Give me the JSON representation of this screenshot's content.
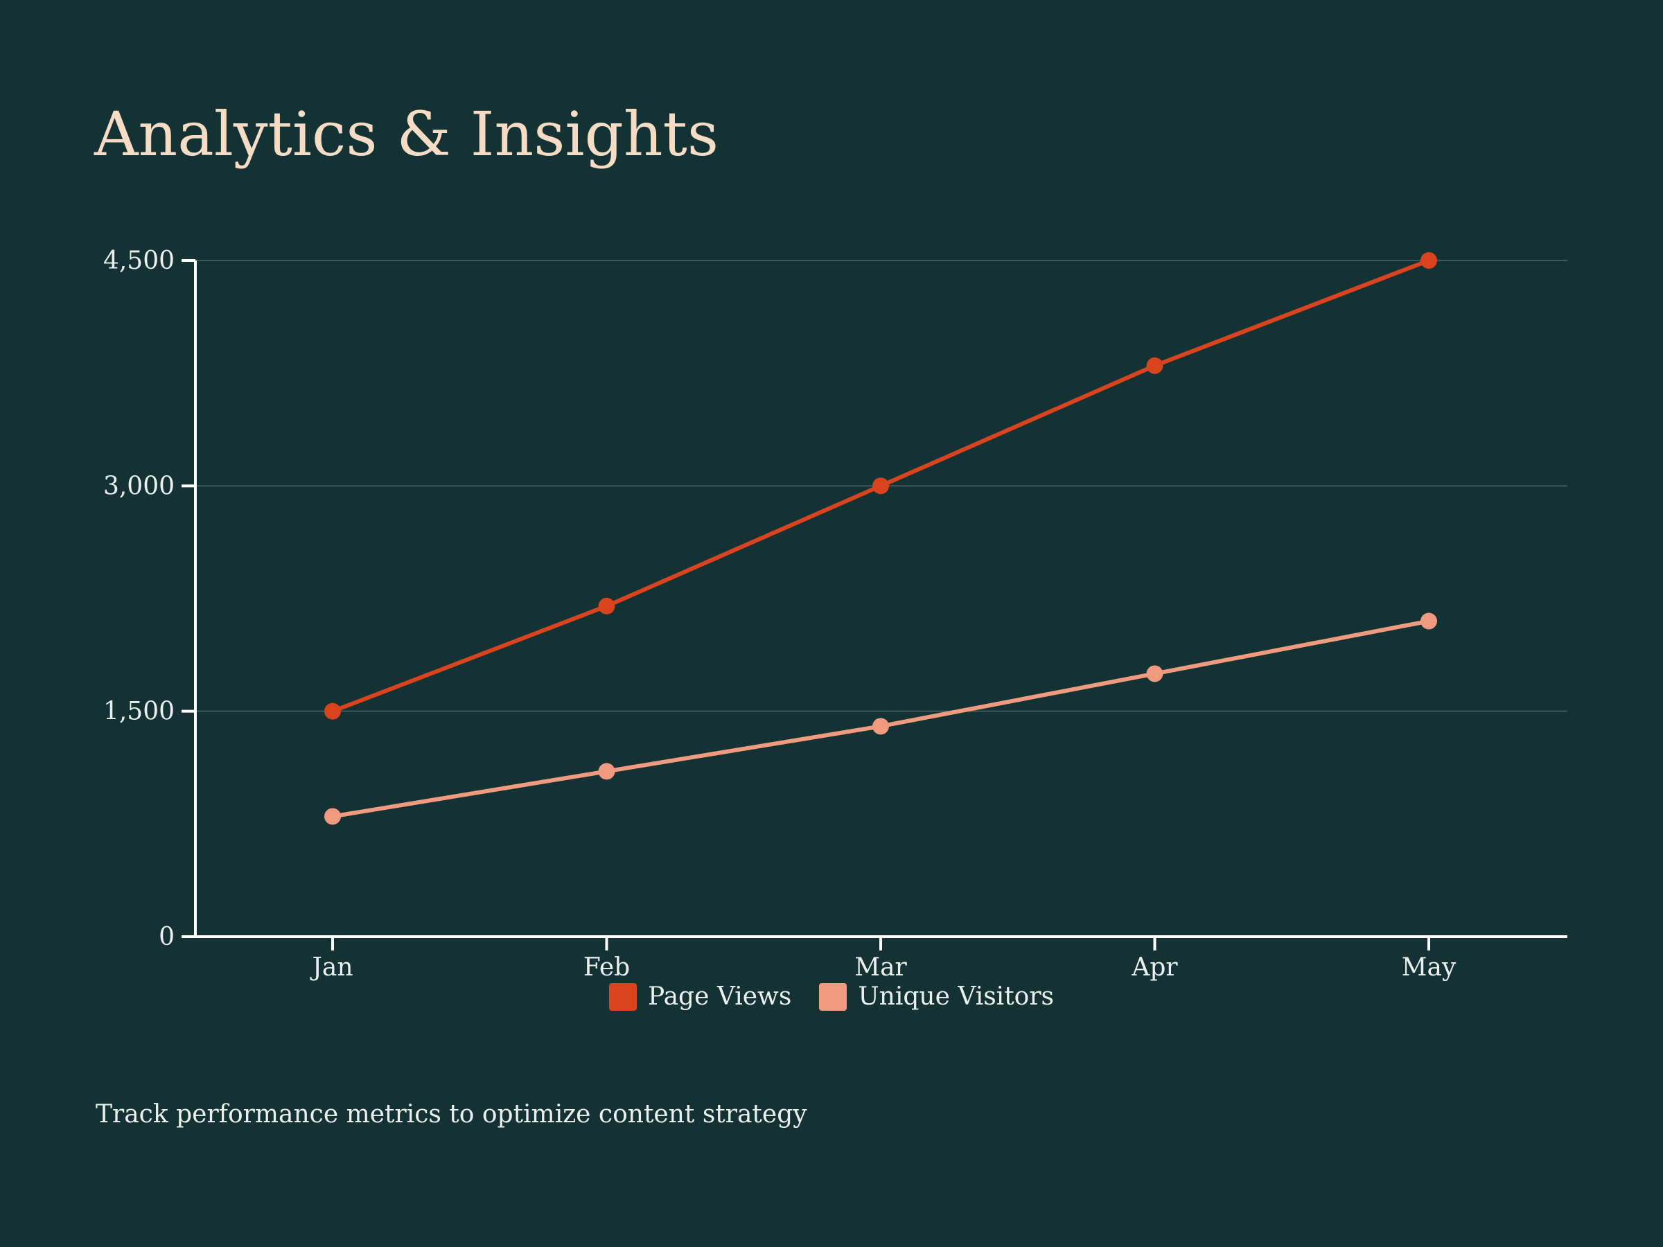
{
  "title": "Analytics & Insights",
  "caption": "Track performance metrics to optimize content strategy",
  "colors": {
    "background": "#143233",
    "title": "#f6dcc4",
    "text": "#eaf0ee",
    "axis": "#ffffff",
    "grid": "#3d5a5a"
  },
  "chart_data": {
    "type": "line",
    "title": "",
    "xlabel": "",
    "ylabel": "",
    "categories": [
      "Jan",
      "Feb",
      "Mar",
      "Apr",
      "May"
    ],
    "ylim": [
      0,
      4500
    ],
    "yticks": [
      0,
      1500,
      3000,
      4500
    ],
    "ytick_labels": [
      "0",
      "1,500",
      "3,000",
      "4,500"
    ],
    "grid": true,
    "legend_position": "bottom-center",
    "series": [
      {
        "name": "Page Views",
        "color": "#d9441f",
        "values": [
          1500,
          2200,
          3000,
          3800,
          4500
        ]
      },
      {
        "name": "Unique Visitors",
        "color": "#f09a80",
        "values": [
          800,
          1100,
          1400,
          1750,
          2100
        ]
      }
    ]
  }
}
